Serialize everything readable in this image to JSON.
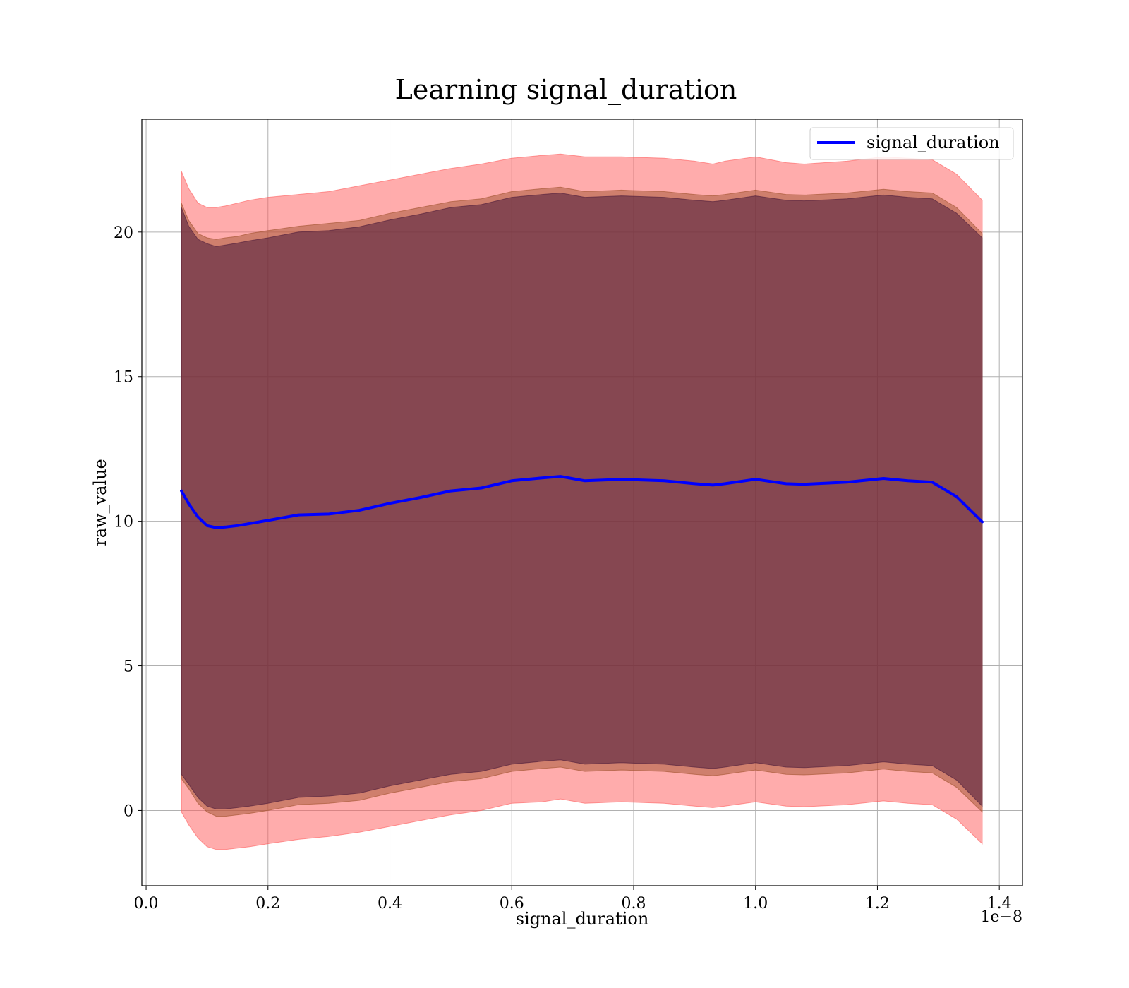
{
  "chart_data": {
    "type": "line",
    "title": "Learning signal_duration",
    "xlabel": "signal_duration",
    "ylabel": "raw_value",
    "x_offset_text": "1e−8",
    "xlim": [
      -0.007,
      1.438
    ],
    "ylim": [
      -2.6,
      23.9
    ],
    "grid": true,
    "x_ticks": [
      0.0,
      0.2,
      0.4,
      0.6,
      0.8,
      1.0,
      1.2,
      1.4
    ],
    "x_tick_labels": [
      "0.0",
      "0.2",
      "0.4",
      "0.6",
      "0.8",
      "1.0",
      "1.2",
      "1.4"
    ],
    "y_ticks": [
      0,
      5,
      10,
      15,
      20
    ],
    "y_tick_labels": [
      "0",
      "5",
      "10",
      "15",
      "20"
    ],
    "legend": {
      "placement": "top-right",
      "label": "signal_duration"
    },
    "colors": {
      "line": "#0000ff",
      "outer_band": "#ff5a5a",
      "middle_band": "#a0522d",
      "inner_band": "#4b1a3a"
    },
    "series": [
      {
        "name": "signal_duration",
        "x": [
          0.058,
          0.07,
          0.085,
          0.1,
          0.115,
          0.13,
          0.15,
          0.17,
          0.2,
          0.25,
          0.3,
          0.35,
          0.4,
          0.45,
          0.5,
          0.55,
          0.6,
          0.65,
          0.68,
          0.72,
          0.78,
          0.85,
          0.9,
          0.93,
          0.95,
          1.0,
          1.05,
          1.08,
          1.15,
          1.21,
          1.25,
          1.29,
          1.33,
          1.372
        ],
        "mean": [
          11.05,
          10.6,
          10.15,
          9.85,
          9.78,
          9.8,
          9.85,
          9.92,
          10.03,
          10.22,
          10.25,
          10.38,
          10.62,
          10.82,
          11.05,
          11.15,
          11.4,
          11.5,
          11.55,
          11.4,
          11.45,
          11.4,
          11.3,
          11.25,
          11.3,
          11.45,
          11.3,
          11.28,
          11.35,
          11.48,
          11.4,
          11.35,
          10.85,
          9.98
        ],
        "outer_upper": [
          22.1,
          21.5,
          21.0,
          20.85,
          20.85,
          20.9,
          21.0,
          21.1,
          21.2,
          21.3,
          21.4,
          21.6,
          21.8,
          22.0,
          22.2,
          22.35,
          22.55,
          22.65,
          22.7,
          22.6,
          22.6,
          22.55,
          22.45,
          22.35,
          22.45,
          22.6,
          22.4,
          22.35,
          22.45,
          22.6,
          22.55,
          22.5,
          22.0,
          21.1
        ],
        "mid_upper": [
          21.0,
          20.4,
          19.95,
          19.8,
          19.75,
          19.8,
          19.85,
          19.95,
          20.05,
          20.2,
          20.3,
          20.4,
          20.65,
          20.85,
          21.05,
          21.15,
          21.4,
          21.5,
          21.55,
          21.4,
          21.45,
          21.4,
          21.3,
          21.25,
          21.3,
          21.45,
          21.3,
          21.28,
          21.35,
          21.48,
          21.4,
          21.35,
          20.85,
          19.95
        ],
        "inner_upper": [
          20.85,
          20.2,
          19.75,
          19.6,
          19.5,
          19.55,
          19.62,
          19.7,
          19.8,
          20.0,
          20.05,
          20.18,
          20.42,
          20.62,
          20.85,
          20.95,
          21.2,
          21.3,
          21.35,
          21.2,
          21.25,
          21.2,
          21.1,
          21.05,
          21.1,
          21.25,
          21.1,
          21.08,
          21.15,
          21.28,
          21.2,
          21.15,
          20.65,
          19.8
        ],
        "inner_lower": [
          1.25,
          0.9,
          0.45,
          0.15,
          0.05,
          0.05,
          0.1,
          0.15,
          0.25,
          0.45,
          0.5,
          0.6,
          0.85,
          1.05,
          1.25,
          1.35,
          1.6,
          1.7,
          1.75,
          1.6,
          1.65,
          1.6,
          1.5,
          1.45,
          1.5,
          1.65,
          1.5,
          1.48,
          1.55,
          1.68,
          1.6,
          1.55,
          1.05,
          0.15
        ],
        "mid_lower": [
          1.1,
          0.75,
          0.25,
          -0.05,
          -0.2,
          -0.2,
          -0.15,
          -0.1,
          0.0,
          0.2,
          0.25,
          0.35,
          0.6,
          0.8,
          1.0,
          1.1,
          1.35,
          1.45,
          1.5,
          1.35,
          1.4,
          1.35,
          1.25,
          1.2,
          1.25,
          1.4,
          1.25,
          1.23,
          1.3,
          1.43,
          1.35,
          1.3,
          0.8,
          -0.05
        ],
        "outer_lower": [
          -0.05,
          -0.5,
          -0.95,
          -1.25,
          -1.35,
          -1.35,
          -1.3,
          -1.25,
          -1.15,
          -1.0,
          -0.9,
          -0.75,
          -0.55,
          -0.35,
          -0.15,
          0.0,
          0.25,
          0.3,
          0.4,
          0.25,
          0.3,
          0.25,
          0.15,
          0.1,
          0.15,
          0.3,
          0.15,
          0.13,
          0.2,
          0.33,
          0.25,
          0.2,
          -0.3,
          -1.15
        ]
      }
    ]
  }
}
